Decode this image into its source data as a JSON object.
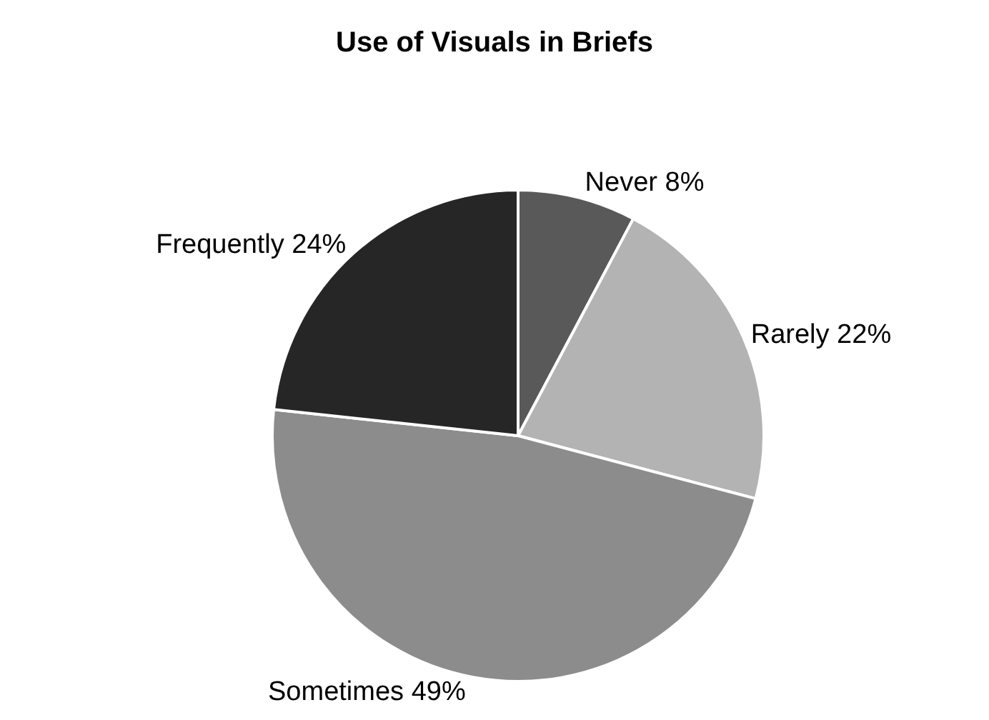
{
  "chart_data": {
    "type": "pie",
    "title": "Use of Visuals in Briefs",
    "categories": [
      "Never",
      "Rarely",
      "Sometimes",
      "Frequently"
    ],
    "values": [
      8,
      22,
      49,
      24
    ],
    "value_labels": [
      "8%",
      "22%",
      "49%",
      "24%"
    ],
    "colors": [
      "#595959",
      "#b3b3b3",
      "#8c8c8c",
      "#262626"
    ],
    "legend": false
  }
}
